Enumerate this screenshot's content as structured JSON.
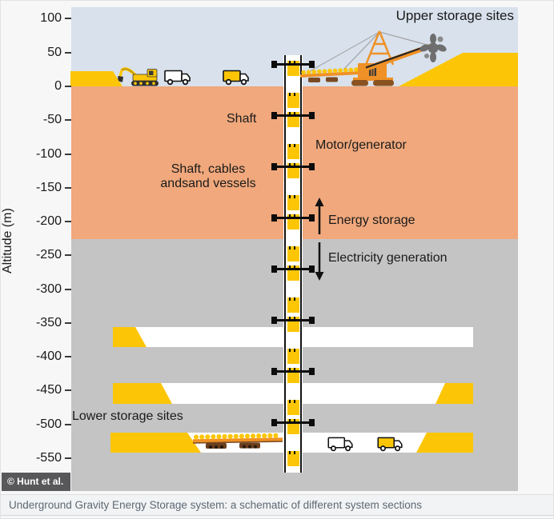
{
  "axis": {
    "title": "Altitude (m)",
    "ticks": [
      "100",
      "50",
      "0",
      "-50",
      "-100",
      "-150",
      "-200",
      "-250",
      "-300",
      "-350",
      "-400",
      "-450",
      "-500",
      "-550"
    ]
  },
  "annotations": {
    "upper_storage_sites": "Upper storage sites",
    "shaft": "Shaft",
    "motor_generator": "Motor/generator",
    "shaft_cables_line1": "Shaft, cables",
    "shaft_cables_line2": "andsand vessels",
    "energy_storage": "Energy storage",
    "electricity_generation": "Electricity generation",
    "lower_storage_sites": "Lower storage sites"
  },
  "credit_badge": "© Hunt et al.",
  "caption": "Underground Gravity Energy Storage system: a schematic of different system sections",
  "icons": {
    "excavator": "excavator-icon",
    "delivery_truck": "truck-icon",
    "sand_truck": "sand-truck-icon",
    "stacker_crane": "stacker-crane-icon",
    "bucket_wheel": "bucket-wheel-icon",
    "conveyor": "conveyor-icon",
    "sand_vessel": "sand-vessel-icon"
  },
  "colors": {
    "sky": "#d8e1ec",
    "soil": "#f0a87c",
    "rock": "#c4c4c5",
    "sand": "#fcc607",
    "tunnel": "#ffffff",
    "machine": "#ef9126",
    "belt_dark": "#7a4a22",
    "text": "#1a1a1a",
    "caption_text": "#5d6975",
    "caption_bg": "#f2f3f4",
    "badge_bg": "#58585a",
    "badge_text": "#ffffff"
  }
}
